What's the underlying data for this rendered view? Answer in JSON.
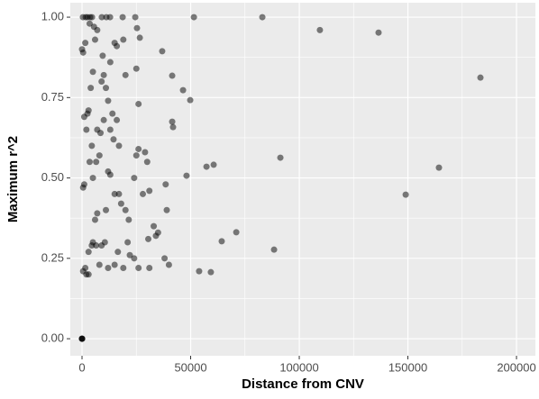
{
  "chart_data": {
    "type": "scatter",
    "x_label": "Distance from CNV",
    "y_label": "Maximum r^2",
    "xlim": [
      -5400,
      208700
    ],
    "ylim": [
      -0.053,
      1.045
    ],
    "xticks": [
      0,
      50000,
      100000,
      150000,
      200000
    ],
    "yticks": [
      {
        "value": 0,
        "label": "0.00"
      },
      {
        "value": 0.25,
        "label": "0.25"
      },
      {
        "value": 0.5,
        "label": "0.50"
      },
      {
        "value": 0.75,
        "label": "0.75"
      },
      {
        "value": 1,
        "label": "1.00"
      }
    ],
    "grid": true,
    "color": "#000000",
    "x": [
      0,
      0,
      0,
      0,
      400,
      1700,
      2500,
      3700,
      4600,
      9100,
      11200,
      12900,
      18700,
      24500,
      51500,
      83000,
      109500,
      136500,
      183400,
      164300,
      149000,
      91300,
      60600,
      57300,
      88400,
      71000,
      64300,
      59300,
      53900,
      48100,
      49800,
      46500,
      41500,
      41900,
      41500,
      36900,
      26600,
      25300,
      2000,
      500,
      1500,
      3000,
      1000,
      500,
      0,
      500,
      1500,
      1000,
      3000,
      2500,
      4000,
      5000,
      3500,
      5500,
      7000,
      6000,
      4500,
      3500,
      5000,
      6500,
      8000,
      7000,
      8500,
      9000,
      10000,
      11000,
      12000,
      9500,
      13000,
      15000,
      16000,
      10000,
      13000,
      14500,
      12000,
      13000,
      15000,
      17000,
      18000,
      11000,
      7000,
      6000,
      5000,
      6500,
      9000,
      10500,
      3000,
      4500,
      8000,
      12000,
      15000,
      16500,
      19000,
      21000,
      22000,
      24000,
      26000,
      20000,
      21500,
      24000,
      25000,
      26000,
      29000,
      30000,
      31000,
      33000,
      34000,
      35000,
      31000,
      38000,
      40000,
      38500,
      39000,
      26000,
      25000,
      20000,
      16000,
      17000,
      28000,
      30500,
      19000,
      14000,
      2000
    ],
    "values": [
      0,
      0,
      0,
      0,
      1,
      1,
      1,
      1,
      1,
      1,
      1,
      1,
      1,
      1,
      1,
      1,
      0.96,
      0.952,
      0.812,
      0.532,
      0.448,
      0.563,
      0.541,
      0.535,
      0.277,
      0.331,
      0.303,
      0.207,
      0.21,
      0.507,
      0.742,
      0.773,
      0.675,
      0.658,
      0.818,
      0.894,
      0.936,
      0.966,
      0.2,
      0.21,
      0.22,
      0.2,
      0.48,
      0.47,
      0.9,
      0.89,
      0.92,
      0.69,
      0.71,
      0.7,
      0.78,
      0.83,
      0.98,
      0.97,
      0.96,
      0.93,
      0.6,
      0.55,
      0.5,
      0.55,
      0.57,
      0.65,
      0.64,
      0.8,
      0.82,
      0.78,
      0.74,
      0.88,
      0.86,
      0.92,
      0.91,
      0.68,
      0.65,
      0.62,
      0.52,
      0.51,
      0.45,
      0.45,
      0.42,
      0.4,
      0.39,
      0.37,
      0.3,
      0.29,
      0.29,
      0.3,
      0.27,
      0.29,
      0.23,
      0.22,
      0.23,
      0.27,
      0.22,
      0.3,
      0.26,
      0.25,
      0.22,
      0.4,
      0.37,
      0.5,
      0.57,
      0.59,
      0.58,
      0.55,
      0.46,
      0.35,
      0.32,
      0.33,
      0.22,
      0.25,
      0.23,
      0.48,
      0.4,
      0.73,
      0.84,
      0.82,
      0.68,
      0.6,
      0.45,
      0.31,
      0.93,
      0.7,
      0.65
    ]
  }
}
